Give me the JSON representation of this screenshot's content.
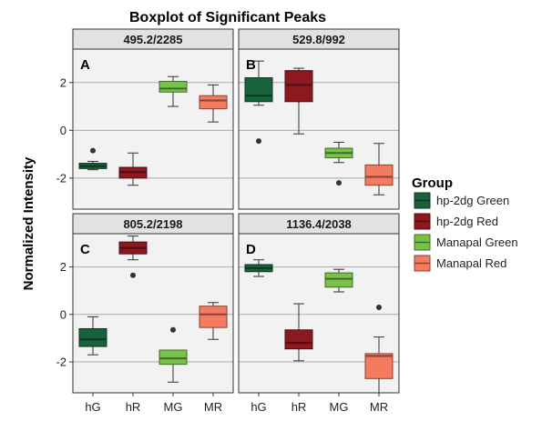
{
  "chart_data": {
    "type": "boxplot",
    "title": "Boxplot of Significant Peaks",
    "ylabel": "Normalized Intensity",
    "xlabel": "",
    "categories": [
      "hG",
      "hR",
      "MG",
      "MR"
    ],
    "ylim": [
      -3.3,
      3.4
    ],
    "yticks": [
      -2,
      0,
      2
    ],
    "grid": true,
    "legend": {
      "title": "Group",
      "placement": "right",
      "entries": [
        {
          "name": "hp-2dg Green",
          "color": "#17623a"
        },
        {
          "name": "hp-2dg Red",
          "color": "#8c1820"
        },
        {
          "name": "Manapal Green",
          "color": "#78c24a"
        },
        {
          "name": "Manapal Red",
          "color": "#f47a62"
        }
      ]
    },
    "panels": [
      {
        "strip": "495.2/2285",
        "tag": "A",
        "boxes": [
          {
            "min": -1.65,
            "q1": -1.6,
            "median": -1.5,
            "q3": -1.38,
            "max": -1.3,
            "outliers": [
              -0.85
            ]
          },
          {
            "min": -2.3,
            "q1": -2.0,
            "median": -1.75,
            "q3": -1.55,
            "max": -0.95,
            "outliers": []
          },
          {
            "min": 1.0,
            "q1": 1.6,
            "median": 1.75,
            "q3": 2.05,
            "max": 2.25,
            "outliers": []
          },
          {
            "min": 0.35,
            "q1": 0.9,
            "median": 1.25,
            "q3": 1.45,
            "max": 1.9,
            "outliers": []
          }
        ]
      },
      {
        "strip": "529.8/992",
        "tag": "B",
        "boxes": [
          {
            "min": 1.05,
            "q1": 1.2,
            "median": 1.45,
            "q3": 2.2,
            "max": 2.9,
            "outliers": [
              -0.45
            ]
          },
          {
            "min": -0.15,
            "q1": 1.2,
            "median": 1.9,
            "q3": 2.5,
            "max": 2.6,
            "outliers": []
          },
          {
            "min": -1.35,
            "q1": -1.15,
            "median": -0.95,
            "q3": -0.75,
            "max": -0.5,
            "outliers": [
              -2.2
            ]
          },
          {
            "min": -2.7,
            "q1": -2.3,
            "median": -1.95,
            "q3": -1.45,
            "max": -0.55,
            "outliers": []
          }
        ]
      },
      {
        "strip": "805.2/2198",
        "tag": "C",
        "boxes": [
          {
            "min": -1.7,
            "q1": -1.35,
            "median": -1.05,
            "q3": -0.6,
            "max": -0.1,
            "outliers": []
          },
          {
            "min": 2.3,
            "q1": 2.55,
            "median": 2.8,
            "q3": 3.05,
            "max": 3.3,
            "outliers": [
              1.65
            ]
          },
          {
            "min": -2.85,
            "q1": -2.1,
            "median": -1.85,
            "q3": -1.5,
            "max": -1.5,
            "outliers": [
              -0.65
            ]
          },
          {
            "min": -1.05,
            "q1": -0.55,
            "median": 0.0,
            "q3": 0.35,
            "max": 0.5,
            "outliers": []
          }
        ]
      },
      {
        "strip": "1136.4/2038",
        "tag": "D",
        "boxes": [
          {
            "min": 1.6,
            "q1": 1.8,
            "median": 1.95,
            "q3": 2.1,
            "max": 2.3,
            "outliers": []
          },
          {
            "min": -1.95,
            "q1": -1.45,
            "median": -1.2,
            "q3": -0.65,
            "max": 0.45,
            "outliers": []
          },
          {
            "min": 0.95,
            "q1": 1.15,
            "median": 1.5,
            "q3": 1.75,
            "max": 1.9,
            "outliers": []
          },
          {
            "min": -3.3,
            "q1": -2.7,
            "median": -1.75,
            "q3": -1.65,
            "max": -0.95,
            "outliers": [
              0.3
            ]
          }
        ]
      }
    ]
  }
}
